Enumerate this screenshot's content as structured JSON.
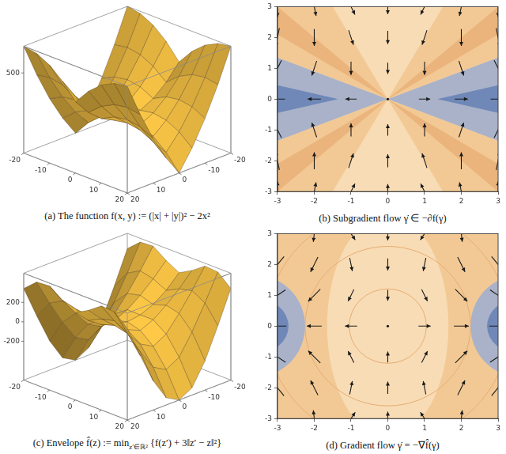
{
  "chart_data": [
    {
      "type": "surface",
      "caption": "(a) The function f(x, y) := (|x| + |y|)² − 2x²",
      "color": "#f6c244",
      "x": [
        -20,
        -15,
        -10,
        -5,
        0,
        5,
        10,
        15,
        20
      ],
      "y": [
        -20,
        -15,
        -10,
        -5,
        0,
        5,
        10,
        15,
        20
      ],
      "z": [
        [
          800,
          425,
          100,
          -175,
          -400,
          -175,
          100,
          425,
          800
        ],
        [
          775,
          450,
          175,
          -50,
          -225,
          -50,
          175,
          450,
          775
        ],
        [
          700,
          425,
          200,
          25,
          -100,
          25,
          200,
          425,
          700
        ],
        [
          575,
          350,
          175,
          50,
          -25,
          50,
          175,
          350,
          575
        ],
        [
          400,
          225,
          100,
          25,
          0,
          25,
          100,
          225,
          400
        ],
        [
          575,
          350,
          175,
          50,
          -25,
          50,
          175,
          350,
          575
        ],
        [
          700,
          425,
          200,
          25,
          -100,
          25,
          200,
          425,
          700
        ],
        [
          775,
          450,
          175,
          -50,
          -225,
          -50,
          175,
          450,
          775
        ],
        [
          800,
          425,
          100,
          -175,
          -400,
          -175,
          100,
          425,
          800
        ]
      ],
      "xlim": [
        -20,
        20
      ],
      "ylim": [
        -20,
        20
      ],
      "zlim": [
        -400,
        800
      ],
      "xticks": [
        -20,
        -10,
        0,
        10,
        20
      ],
      "yticks": [
        -20,
        -10,
        0,
        10,
        20
      ],
      "zticks": [
        500
      ]
    },
    {
      "type": "quiver",
      "caption": "(b) Subgradient flow γ̇ ∈ −∂f(γ)",
      "color": "#1a1a1a",
      "x": [
        -3,
        -2,
        -1,
        0,
        1,
        2,
        3
      ],
      "y": [
        -3,
        -2,
        -1,
        0,
        1,
        2,
        3
      ],
      "u": [
        [
          0,
          2,
          4,
          0,
          -4,
          -2,
          0
        ],
        [
          -2,
          0,
          2,
          0,
          -2,
          0,
          2
        ],
        [
          -4,
          -2,
          0,
          0,
          0,
          2,
          4
        ],
        [
          -6,
          -4,
          -2,
          0,
          2,
          4,
          6
        ],
        [
          -4,
          -2,
          0,
          0,
          0,
          2,
          4
        ],
        [
          -2,
          0,
          2,
          0,
          -2,
          0,
          2
        ],
        [
          0,
          2,
          4,
          0,
          -4,
          -2,
          0
        ]
      ],
      "v": [
        [
          12,
          10,
          8,
          6,
          8,
          10,
          12
        ],
        [
          10,
          8,
          6,
          4,
          6,
          8,
          10
        ],
        [
          8,
          6,
          4,
          2,
          4,
          6,
          8
        ],
        [
          0,
          0,
          0,
          0,
          0,
          0,
          0
        ],
        [
          -8,
          -6,
          -4,
          -2,
          -4,
          -6,
          -8
        ],
        [
          -10,
          -8,
          -6,
          -4,
          -6,
          -8,
          -10
        ],
        [
          -12,
          -10,
          -8,
          -6,
          -8,
          -10,
          -12
        ]
      ],
      "xlim": [
        -3,
        3
      ],
      "ylim": [
        -3,
        3
      ],
      "xticks": [
        -3,
        -2,
        -1,
        0,
        1,
        2,
        3
      ],
      "yticks": [
        -3,
        -2,
        -1,
        0,
        1,
        2,
        3
      ]
    },
    {
      "type": "surface",
      "caption": [
        "(c) Envelope f̂(z) := min",
        {
          "sub": "z′∈ℝ²"
        },
        " {f(z′) + 3‖z′ − z‖²}"
      ],
      "color": "#f6c244",
      "x": [
        -20,
        -15,
        -10,
        -5,
        0,
        5,
        10,
        15,
        20
      ],
      "y": [
        -20,
        -15,
        -10,
        -5,
        0,
        5,
        10,
        15,
        20
      ],
      "z": [
        [
          343,
          11,
          -300,
          -525,
          -600,
          -525,
          -300,
          11,
          343
        ],
        [
          461,
          193,
          -54,
          -263,
          -338,
          -263,
          -54,
          193,
          461
        ],
        [
          471,
          268,
          86,
          -75,
          -150,
          -75,
          86,
          268,
          471
        ],
        [
          375,
          236,
          118,
          21,
          -38,
          21,
          118,
          236,
          375
        ],
        [
          300,
          169,
          75,
          19,
          0,
          19,
          75,
          169,
          300
        ],
        [
          375,
          236,
          118,
          21,
          -38,
          21,
          118,
          236,
          375
        ],
        [
          471,
          268,
          86,
          -75,
          -150,
          -75,
          86,
          268,
          471
        ],
        [
          461,
          193,
          -54,
          -263,
          -338,
          -263,
          -54,
          193,
          461
        ],
        [
          343,
          11,
          -300,
          -525,
          -600,
          -525,
          -300,
          11,
          343
        ]
      ],
      "xlim": [
        -20,
        20
      ],
      "ylim": [
        -20,
        20
      ],
      "zlim": [
        -600,
        500
      ],
      "xticks": [
        -20,
        -10,
        0,
        10,
        20
      ],
      "yticks": [
        -20,
        -10,
        0,
        10,
        20
      ],
      "zticks": [
        -200,
        0,
        200
      ]
    },
    {
      "type": "quiver",
      "caption": "(d) Gradient flow γ̇ = −∇f̂(γ)",
      "color": "#1a1a1a",
      "x": [
        -3,
        -2,
        -1,
        0,
        1,
        2,
        3
      ],
      "y": [
        -3,
        -2,
        -1,
        0,
        1,
        2,
        3
      ],
      "u": [
        [
          -5.14,
          -0.86,
          3.43,
          0,
          -3.43,
          0.86,
          5.14
        ],
        [
          -7.71,
          -3.43,
          0.86,
          0,
          -0.86,
          3.43,
          7.71
        ],
        [
          -9,
          -6,
          -1.71,
          0,
          1.71,
          6,
          9
        ],
        [
          -9,
          -6,
          -3,
          0,
          3,
          6,
          9
        ],
        [
          -9,
          -6,
          -1.71,
          0,
          1.71,
          6,
          9
        ],
        [
          -7.71,
          -3.43,
          0.86,
          0,
          -0.86,
          3.43,
          7.71
        ],
        [
          -5.14,
          -0.86,
          3.43,
          0,
          -3.43,
          0.86,
          5.14
        ]
      ],
      "v": [
        [
          10.29,
          7.71,
          5.14,
          4.5,
          5.14,
          7.71,
          10.29
        ],
        [
          9.43,
          6.86,
          4.29,
          3,
          4.29,
          6.86,
          9.43
        ],
        [
          6,
          6,
          3.43,
          1.5,
          3.43,
          6,
          6
        ],
        [
          0,
          0,
          0,
          0,
          0,
          0,
          0
        ],
        [
          -6,
          -6,
          -3.43,
          -1.5,
          -3.43,
          -6,
          -6
        ],
        [
          -9.43,
          -6.86,
          -4.29,
          -3,
          -4.29,
          -6.86,
          -9.43
        ],
        [
          -10.29,
          -7.71,
          -5.14,
          -4.5,
          -5.14,
          -7.71,
          -10.29
        ]
      ],
      "xlim": [
        -3,
        3
      ],
      "ylim": [
        -3,
        3
      ],
      "xticks": [
        -3,
        -2,
        -1,
        0,
        1,
        2,
        3
      ],
      "yticks": [
        -3,
        -2,
        -1,
        0,
        1,
        2,
        3
      ]
    }
  ]
}
